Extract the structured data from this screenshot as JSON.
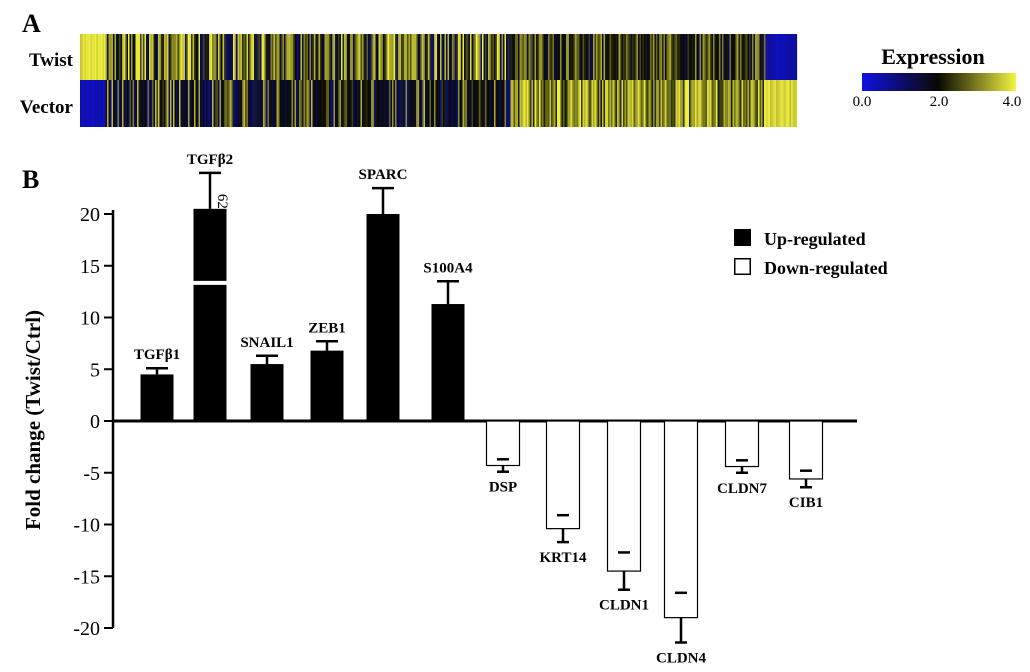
{
  "panel_a": {
    "label": "A",
    "rows": [
      "Twist",
      "Vector"
    ],
    "legend": {
      "title": "Expression",
      "ticks": [
        "0.0",
        "2.0",
        "4.0"
      ],
      "min": 0,
      "max": 4
    },
    "colors": {
      "low": "#1010e0",
      "mid": "#0a0a00",
      "high": "#f4f442"
    }
  },
  "panel_b": {
    "label": "B",
    "y_tick_labels": [
      "20",
      "15",
      "10",
      "5",
      "0",
      "-5",
      "-10",
      "-15",
      "-20"
    ],
    "break_label": "62",
    "legend": {
      "up": "Up-regulated",
      "down": "Down-regulated"
    }
  },
  "chart_data": {
    "type": "bar",
    "title": "",
    "xlabel": "",
    "ylabel": "Fold change (Twist/Ctrl)",
    "ylim": [
      -20,
      20
    ],
    "y_ticks": [
      20,
      15,
      10,
      5,
      0,
      -5,
      -10,
      -15,
      -20
    ],
    "categories": [
      "TGFβ1",
      "TGFβ2",
      "SNAIL1",
      "ZEB1",
      "SPARC",
      "S100A4",
      "DSP",
      "KRT14",
      "CLDN1",
      "CLDN4",
      "CLDN7",
      "CIB1"
    ],
    "values": [
      4.5,
      62,
      5.5,
      6.8,
      20,
      11.3,
      -4.3,
      -10.4,
      -14.5,
      -19.0,
      -4.4,
      -5.6
    ],
    "errors": [
      0.6,
      3.5,
      0.8,
      0.9,
      2.5,
      2.2,
      0.6,
      1.3,
      1.8,
      2.4,
      0.6,
      0.8
    ],
    "regulation": [
      "up",
      "up",
      "up",
      "up",
      "up",
      "up",
      "down",
      "down",
      "down",
      "down",
      "down",
      "down"
    ],
    "axis_break": {
      "display_top": 20.5,
      "break_at": 13.3,
      "label": "62"
    },
    "series": [
      {
        "name": "Up-regulated",
        "color": "#000000"
      },
      {
        "name": "Down-regulated",
        "color": "#ffffff"
      }
    ]
  }
}
